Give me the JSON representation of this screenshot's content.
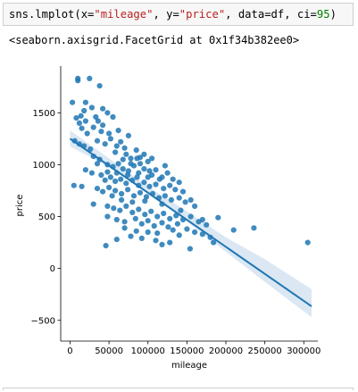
{
  "code_cell": {
    "tokens": [
      {
        "text": "sns.lmplot(x=",
        "kind": "plain"
      },
      {
        "text": "\"mileage\"",
        "kind": "str"
      },
      {
        "text": ", y=",
        "kind": "plain"
      },
      {
        "text": "\"price\"",
        "kind": "str"
      },
      {
        "text": ", data=df, ci=",
        "kind": "plain"
      },
      {
        "text": "95",
        "kind": "num"
      },
      {
        "text": ")",
        "kind": "plain"
      }
    ]
  },
  "output": {
    "repr_text": "<seaborn.axisgrid.FacetGrid at 0x1f34b382ee0>"
  },
  "chart_data": {
    "type": "scatter",
    "xlabel": "mileage",
    "ylabel": "price",
    "xlim": [
      -12000,
      318000
    ],
    "ylim": [
      -700,
      1950
    ],
    "xticks": [
      0,
      50000,
      100000,
      150000,
      200000,
      250000,
      300000
    ],
    "xtick_labels": [
      "0",
      "50000",
      "100000",
      "150000",
      "200000",
      "250000",
      "300000"
    ],
    "yticks": [
      -500,
      0,
      500,
      1000,
      1500
    ],
    "ytick_labels": [
      "−500",
      "0",
      "500",
      "1000",
      "1500"
    ],
    "grid": false,
    "colors": {
      "point": "#1f77b4",
      "line": "#1f77b4",
      "band": "#cfe0ef"
    },
    "regression": {
      "x0": 0,
      "y0": 1250,
      "x1": 310000,
      "y1": -365
    },
    "ci_band": {
      "x": [
        0,
        50000,
        100000,
        150000,
        200000,
        250000,
        310000
      ],
      "lower": [
        1175,
        980,
        720,
        450,
        160,
        -130,
        -470
      ],
      "upper": [
        1330,
        1060,
        790,
        550,
        300,
        90,
        -200
      ]
    },
    "points": [
      [
        10000,
        1830
      ],
      [
        10000,
        1810
      ],
      [
        25000,
        1830
      ],
      [
        3000,
        1600
      ],
      [
        20000,
        1600
      ],
      [
        38000,
        1760
      ],
      [
        18000,
        1520
      ],
      [
        8000,
        1450
      ],
      [
        14000,
        1470
      ],
      [
        20000,
        1420
      ],
      [
        28000,
        1550
      ],
      [
        33000,
        1460
      ],
      [
        42000,
        1540
      ],
      [
        48000,
        1500
      ],
      [
        55000,
        1460
      ],
      [
        15000,
        1350
      ],
      [
        22000,
        1300
      ],
      [
        30000,
        1360
      ],
      [
        40000,
        1320
      ],
      [
        50000,
        1300
      ],
      [
        6000,
        1230
      ],
      [
        12000,
        1200
      ],
      [
        18000,
        1180
      ],
      [
        26000,
        1150
      ],
      [
        35000,
        1230
      ],
      [
        45000,
        1200
      ],
      [
        52000,
        1250
      ],
      [
        60000,
        1180
      ],
      [
        65000,
        1220
      ],
      [
        70000,
        1160
      ],
      [
        72000,
        1100
      ],
      [
        78000,
        1060
      ],
      [
        85000,
        1140
      ],
      [
        90000,
        1070
      ],
      [
        95000,
        1100
      ],
      [
        100000,
        1030
      ],
      [
        30000,
        1080
      ],
      [
        38000,
        1050
      ],
      [
        48000,
        1000
      ],
      [
        55000,
        980
      ],
      [
        62000,
        1010
      ],
      [
        68000,
        960
      ],
      [
        75000,
        940
      ],
      [
        82000,
        990
      ],
      [
        88000,
        920
      ],
      [
        95000,
        960
      ],
      [
        105000,
        900
      ],
      [
        110000,
        950
      ],
      [
        118000,
        880
      ],
      [
        125000,
        920
      ],
      [
        20000,
        950
      ],
      [
        28000,
        920
      ],
      [
        40000,
        900
      ],
      [
        45000,
        850
      ],
      [
        52000,
        880
      ],
      [
        58000,
        840
      ],
      [
        65000,
        860
      ],
      [
        72000,
        820
      ],
      [
        80000,
        850
      ],
      [
        88000,
        800
      ],
      [
        95000,
        830
      ],
      [
        102000,
        790
      ],
      [
        110000,
        810
      ],
      [
        120000,
        770
      ],
      [
        128000,
        800
      ],
      [
        135000,
        760
      ],
      [
        50000,
        780
      ],
      [
        58000,
        750
      ],
      [
        66000,
        720
      ],
      [
        74000,
        760
      ],
      [
        82000,
        700
      ],
      [
        90000,
        730
      ],
      [
        98000,
        690
      ],
      [
        106000,
        720
      ],
      [
        114000,
        680
      ],
      [
        122000,
        700
      ],
      [
        130000,
        660
      ],
      [
        140000,
        680
      ],
      [
        148000,
        640
      ],
      [
        155000,
        660
      ],
      [
        5000,
        800
      ],
      [
        15000,
        790
      ],
      [
        30000,
        620
      ],
      [
        48000,
        600
      ],
      [
        56000,
        580
      ],
      [
        64000,
        560
      ],
      [
        72000,
        600
      ],
      [
        80000,
        540
      ],
      [
        88000,
        570
      ],
      [
        96000,
        520
      ],
      [
        104000,
        550
      ],
      [
        112000,
        500
      ],
      [
        120000,
        530
      ],
      [
        128000,
        480
      ],
      [
        136000,
        510
      ],
      [
        145000,
        470
      ],
      [
        155000,
        500
      ],
      [
        165000,
        450
      ],
      [
        170000,
        470
      ],
      [
        175000,
        420
      ],
      [
        48000,
        500
      ],
      [
        60000,
        470
      ],
      [
        70000,
        450
      ],
      [
        84000,
        480
      ],
      [
        92000,
        430
      ],
      [
        100000,
        460
      ],
      [
        108000,
        410
      ],
      [
        118000,
        440
      ],
      [
        126000,
        400
      ],
      [
        138000,
        430
      ],
      [
        150000,
        380
      ],
      [
        160000,
        350
      ],
      [
        170000,
        330
      ],
      [
        180000,
        300
      ],
      [
        190000,
        490
      ],
      [
        210000,
        370
      ],
      [
        236000,
        390
      ],
      [
        305000,
        250
      ],
      [
        184000,
        250
      ],
      [
        154000,
        190
      ],
      [
        46000,
        220
      ],
      [
        60000,
        280
      ],
      [
        78000,
        310
      ],
      [
        92000,
        290
      ],
      [
        110000,
        270
      ],
      [
        128000,
        250
      ],
      [
        140000,
        320
      ],
      [
        118000,
        230
      ],
      [
        70000,
        390
      ],
      [
        85000,
        360
      ],
      [
        100000,
        350
      ],
      [
        112000,
        340
      ],
      [
        132000,
        370
      ],
      [
        36000,
        1420
      ],
      [
        42000,
        1380
      ],
      [
        62000,
        1330
      ],
      [
        75000,
        1280
      ],
      [
        68000,
        1050
      ],
      [
        58000,
        1120
      ],
      [
        35000,
        1010
      ],
      [
        90000,
        1010
      ],
      [
        105000,
        1060
      ],
      [
        122000,
        990
      ],
      [
        132000,
        860
      ],
      [
        140000,
        830
      ],
      [
        145000,
        740
      ],
      [
        160000,
        600
      ],
      [
        142000,
        560
      ],
      [
        118000,
        620
      ],
      [
        96000,
        650
      ],
      [
        80000,
        640
      ],
      [
        66000,
        660
      ],
      [
        54000,
        700
      ],
      [
        42000,
        740
      ],
      [
        35000,
        770
      ],
      [
        115000,
        860
      ],
      [
        100000,
        880
      ],
      [
        86000,
        880
      ],
      [
        74000,
        900
      ],
      [
        60000,
        920
      ],
      [
        48000,
        930
      ],
      [
        78000,
        1010
      ],
      [
        86000,
        1060
      ],
      [
        102000,
        940
      ],
      [
        12000,
        1400
      ]
    ]
  }
}
